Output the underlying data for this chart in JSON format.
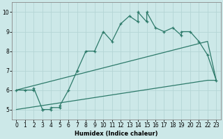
{
  "xlabel": "Humidex (Indice chaleur)",
  "xlim": [
    -0.5,
    23.5
  ],
  "ylim": [
    4.5,
    10.5
  ],
  "xticks": [
    0,
    1,
    2,
    3,
    4,
    5,
    6,
    7,
    8,
    9,
    10,
    11,
    12,
    13,
    14,
    15,
    16,
    17,
    18,
    19,
    20,
    21,
    22,
    23
  ],
  "yticks": [
    5,
    6,
    7,
    8,
    9,
    10
  ],
  "bg_color": "#cce8e8",
  "line_color": "#2d7a6a",
  "grid_color": "#b5d5d5",
  "line1_x": [
    0,
    1,
    2,
    2,
    3,
    3,
    4,
    4,
    5,
    5,
    6,
    7,
    7,
    8,
    9,
    10,
    11,
    12,
    13,
    14,
    14,
    15,
    15,
    16,
    17,
    18,
    19,
    19,
    20,
    21,
    22,
    23
  ],
  "line1_y": [
    6.0,
    6.0,
    6.0,
    6.1,
    5.0,
    5.0,
    5.0,
    5.1,
    5.1,
    5.2,
    6.0,
    7.0,
    7.0,
    8.0,
    8.0,
    9.0,
    8.5,
    9.4,
    9.8,
    9.5,
    10.0,
    9.5,
    10.0,
    9.2,
    9.0,
    9.2,
    8.8,
    9.0,
    9.0,
    8.5,
    7.8,
    6.5
  ],
  "line2_x": [
    0,
    22,
    23
  ],
  "line2_y": [
    5.0,
    6.5,
    6.5
  ],
  "line3_x": [
    0,
    22,
    23
  ],
  "line3_y": [
    6.0,
    8.5,
    6.5
  ],
  "linewidth": 0.9,
  "markersize": 3.5
}
